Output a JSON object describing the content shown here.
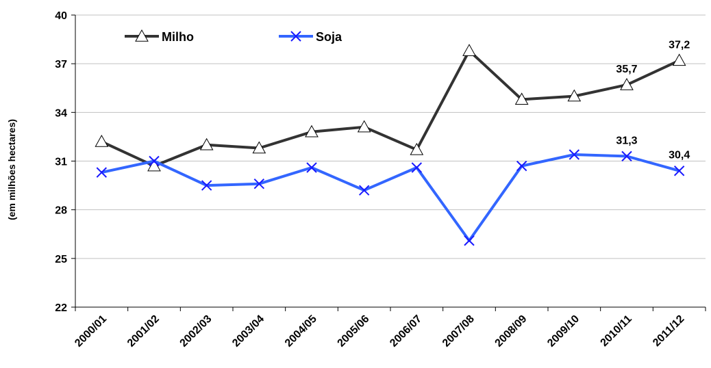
{
  "chart_data": {
    "type": "line",
    "title": "",
    "xlabel": "",
    "ylabel": "(em milhões hectares)",
    "categories": [
      "2000/01",
      "2001/02",
      "2002/03",
      "2003/04",
      "2004/05",
      "2005/06",
      "2006/07",
      "2007/08",
      "2008/09",
      "2009/10",
      "2010/11",
      "2011/12"
    ],
    "ylim": [
      22,
      40
    ],
    "yticks": [
      "22",
      "25",
      "28",
      "31",
      "34",
      "37",
      "40"
    ],
    "grid": true,
    "legend_position": "top-left",
    "series": [
      {
        "name": "Milho",
        "color": "#333333",
        "marker": "triangle",
        "values": [
          32.2,
          30.7,
          32.0,
          31.8,
          32.8,
          33.1,
          31.7,
          37.8,
          34.8,
          35.0,
          35.7,
          37.2
        ],
        "labels": {
          "10": "35,7",
          "11": "37,2"
        }
      },
      {
        "name": "Soja",
        "color": "#3366FF",
        "marker": "x",
        "values": [
          30.3,
          31.0,
          29.5,
          29.6,
          30.6,
          29.2,
          30.6,
          26.1,
          30.7,
          31.4,
          31.3,
          30.4
        ],
        "labels": {
          "10": "31,3",
          "11": "30,4"
        }
      }
    ]
  }
}
